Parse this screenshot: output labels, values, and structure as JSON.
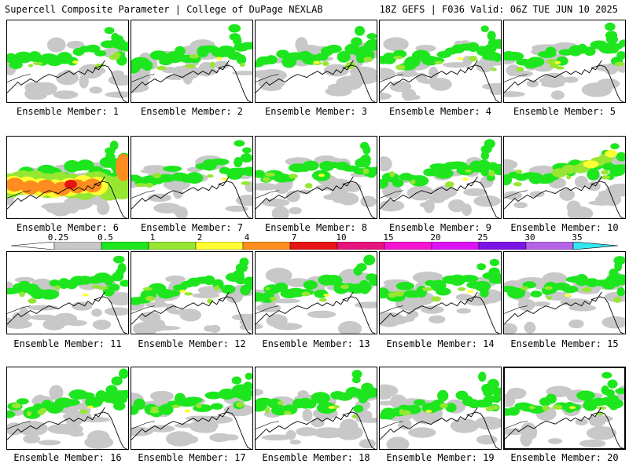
{
  "header": {
    "title": "Supercell Composite Parameter | College of DuPage NEXLAB",
    "run_info": "18Z GEFS | F036 Valid: 06Z TUE JUN 10 2025"
  },
  "caption_prefix": "Ensemble Member:",
  "members": [
    {
      "label": "Ensemble Member: 1",
      "level": "low"
    },
    {
      "label": "Ensemble Member: 2",
      "level": "low"
    },
    {
      "label": "Ensemble Member: 3",
      "level": "low"
    },
    {
      "label": "Ensemble Member: 4",
      "level": "low"
    },
    {
      "label": "Ensemble Member: 5",
      "level": "low"
    },
    {
      "label": "Ensemble Member: 6",
      "level": "high"
    },
    {
      "label": "Ensemble Member: 7",
      "level": "low"
    },
    {
      "label": "Ensemble Member: 8",
      "level": "low"
    },
    {
      "label": "Ensemble Member: 9",
      "level": "low"
    },
    {
      "label": "Ensemble Member: 10",
      "level": "mid"
    },
    {
      "label": "Ensemble Member: 11",
      "level": "low"
    },
    {
      "label": "Ensemble Member: 12",
      "level": "low"
    },
    {
      "label": "Ensemble Member: 13",
      "level": "low"
    },
    {
      "label": "Ensemble Member: 14",
      "level": "low"
    },
    {
      "label": "Ensemble Member: 15",
      "level": "low"
    },
    {
      "label": "Ensemble Member: 16",
      "level": "low"
    },
    {
      "label": "Ensemble Member: 17",
      "level": "low"
    },
    {
      "label": "Ensemble Member: 18",
      "level": "low"
    },
    {
      "label": "Ensemble Member: 19",
      "level": "low"
    },
    {
      "label": "Ensemble Member: 20",
      "level": "low"
    }
  ],
  "selected_member": 20,
  "colorbar": {
    "labels": [
      "0.25",
      "0.5",
      "1",
      "2",
      "4",
      "7",
      "10",
      "15",
      "20",
      "25",
      "30",
      "35"
    ],
    "colors": [
      "#ffffff",
      "#c8c8c8",
      "#1ee61e",
      "#96e632",
      "#ffff32",
      "#ff8c1e",
      "#e61414",
      "#e6147d",
      "#f514d2",
      "#dc14f5",
      "#7d14e6",
      "#b464e6",
      "#32e6f0"
    ]
  }
}
